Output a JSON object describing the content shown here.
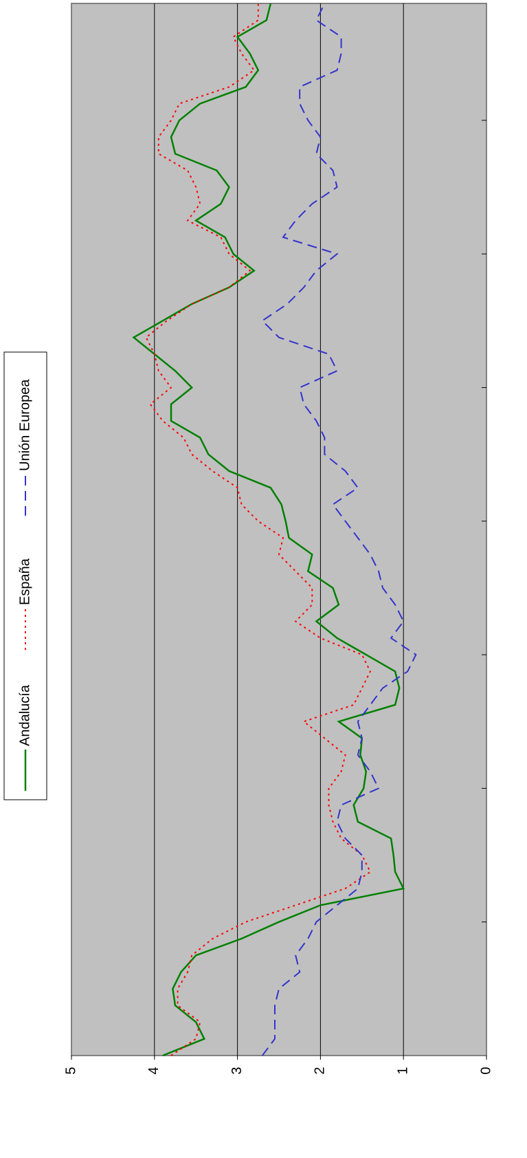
{
  "chart_data": {
    "type": "line",
    "orientation": "rotated",
    "grid": true,
    "legend": "left",
    "categories": [
      null,
      null,
      null,
      null,
      null,
      null,
      null,
      null,
      null,
      null,
      null,
      null,
      null,
      null,
      null,
      null,
      null,
      null,
      null,
      null,
      null,
      null,
      null,
      null,
      null,
      null,
      null,
      null,
      null,
      null,
      null,
      null,
      null,
      null,
      null,
      null,
      null,
      null,
      null,
      null,
      null,
      null,
      null,
      null,
      null,
      null,
      null,
      null,
      null,
      null,
      null,
      null,
      null,
      null,
      null,
      null,
      null,
      null,
      null,
      null,
      null,
      null,
      null,
      null
    ],
    "ylim": [
      0,
      5
    ],
    "yticks": [
      0,
      1,
      2,
      3,
      4,
      5
    ],
    "series": [
      {
        "name": "Andalucía",
        "color": "#008000",
        "style": "solid",
        "values": [
          3.9,
          3.4,
          3.5,
          3.75,
          3.78,
          3.68,
          3.5,
          2.95,
          2.5,
          2.0,
          1.0,
          1.1,
          1.12,
          1.15,
          1.55,
          1.6,
          1.48,
          1.45,
          1.52,
          1.5,
          1.78,
          1.1,
          1.05,
          1.1,
          1.45,
          1.8,
          2.05,
          1.78,
          1.85,
          2.15,
          2.1,
          2.38,
          2.42,
          2.47,
          2.6,
          3.1,
          3.35,
          3.45,
          3.8,
          3.8,
          3.55,
          3.75,
          4.0,
          4.25,
          3.9,
          3.55,
          3.1,
          2.8,
          3.05,
          3.15,
          3.5,
          3.2,
          3.1,
          3.25,
          3.75,
          3.8,
          3.7,
          3.45,
          2.9,
          2.75,
          2.85,
          3.0,
          2.65,
          2.6
        ]
      },
      {
        "name": "España",
        "color": "#ff0000",
        "style": "dotted",
        "values": [
          3.8,
          3.5,
          3.45,
          3.72,
          3.72,
          3.6,
          3.55,
          3.3,
          2.9,
          2.3,
          1.7,
          1.4,
          1.5,
          1.75,
          1.85,
          1.9,
          1.9,
          1.75,
          1.7,
          1.95,
          2.2,
          1.6,
          1.5,
          1.4,
          1.5,
          2.0,
          2.3,
          2.1,
          2.1,
          2.3,
          2.5,
          2.45,
          2.75,
          2.95,
          3.0,
          3.3,
          3.55,
          3.65,
          3.9,
          4.05,
          3.8,
          3.95,
          4.0,
          4.1,
          3.85,
          3.55,
          3.1,
          2.85,
          3.1,
          3.2,
          3.6,
          3.45,
          3.5,
          3.6,
          3.95,
          3.95,
          3.8,
          3.7,
          3.1,
          2.8,
          2.95,
          3.05,
          2.75,
          2.75
        ]
      },
      {
        "name": "Unión Europea",
        "color": "#3333cc",
        "style": "dashed",
        "values": [
          2.7,
          2.55,
          2.55,
          2.55,
          2.5,
          2.25,
          2.3,
          2.15,
          2.05,
          1.8,
          1.55,
          1.5,
          1.5,
          1.7,
          1.8,
          1.75,
          1.3,
          1.4,
          1.55,
          1.5,
          1.55,
          1.4,
          1.25,
          0.95,
          0.85,
          1.15,
          1.0,
          1.1,
          1.25,
          1.3,
          1.4,
          1.55,
          1.7,
          1.85,
          1.55,
          1.7,
          1.95,
          1.95,
          2.05,
          2.2,
          2.25,
          1.8,
          1.9,
          2.5,
          2.7,
          2.4,
          2.2,
          2.05,
          1.8,
          2.45,
          2.3,
          2.1,
          1.8,
          1.85,
          2.05,
          2.0,
          2.15,
          2.25,
          2.25,
          1.8,
          1.75,
          1.75,
          2.05,
          1.95
        ]
      }
    ]
  }
}
